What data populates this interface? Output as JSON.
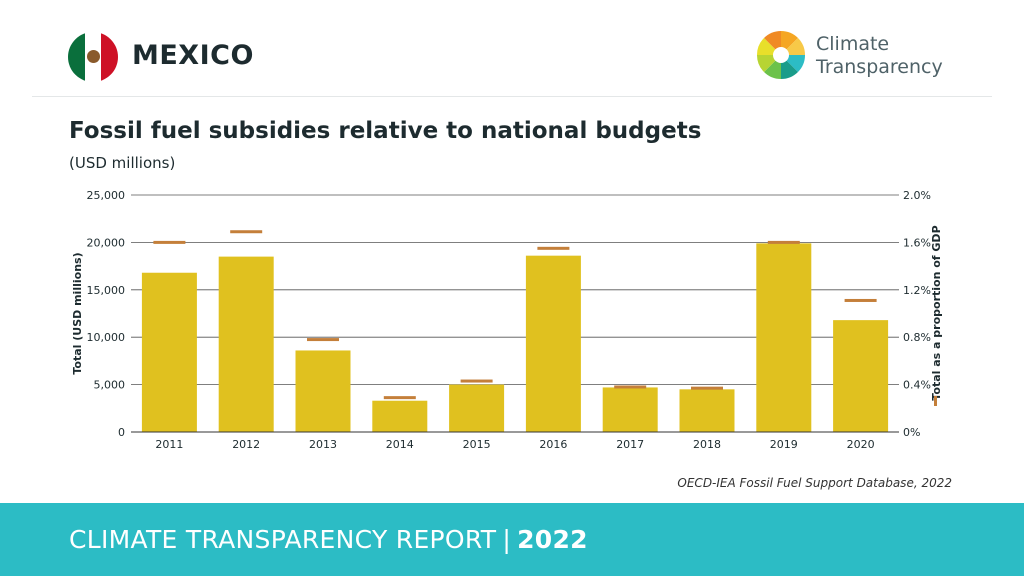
{
  "header": {
    "country": "MEXICO",
    "logo_line1": "Climate",
    "logo_line2": "Transparency"
  },
  "chart_data": {
    "type": "bar",
    "title": "Fossil fuel subsidies relative to national budgets",
    "subtitle": "(USD millions)",
    "categories": [
      "2011",
      "2012",
      "2013",
      "2014",
      "2015",
      "2016",
      "2017",
      "2018",
      "2019",
      "2020"
    ],
    "series": [
      {
        "name": "Total (USD millions)",
        "type": "bar",
        "axis": "left",
        "values": [
          16800,
          18500,
          8600,
          3300,
          5000,
          18600,
          4700,
          4500,
          19900,
          11800
        ]
      },
      {
        "name": "Total as a proportion of GDP",
        "type": "marker",
        "axis": "right",
        "values": [
          1.6,
          1.69,
          0.78,
          0.29,
          0.43,
          1.55,
          0.38,
          0.37,
          1.6,
          1.11
        ]
      }
    ],
    "ylabel": "Total (USD millions)",
    "y2label": "Total as a proportion of GDP",
    "ylim": [
      0,
      25000
    ],
    "y2lim": [
      0,
      2.0
    ],
    "yticks": [
      "0",
      "5,000",
      "10,000",
      "15,000",
      "20,000",
      "25,000"
    ],
    "y2ticks": [
      "0%",
      "0.4%",
      "0.8%",
      "1.2%",
      "1.6%",
      "2.0%"
    ],
    "grid": true,
    "colors": {
      "bar": "#e0c11f",
      "marker": "#c47f3a",
      "grid": "#555555"
    }
  },
  "source": "OECD-IEA Fossil Fuel Support Database, 2022",
  "footer": {
    "label": "CLIMATE TRANSPARENCY REPORT",
    "separator": "|",
    "year": "2022"
  }
}
